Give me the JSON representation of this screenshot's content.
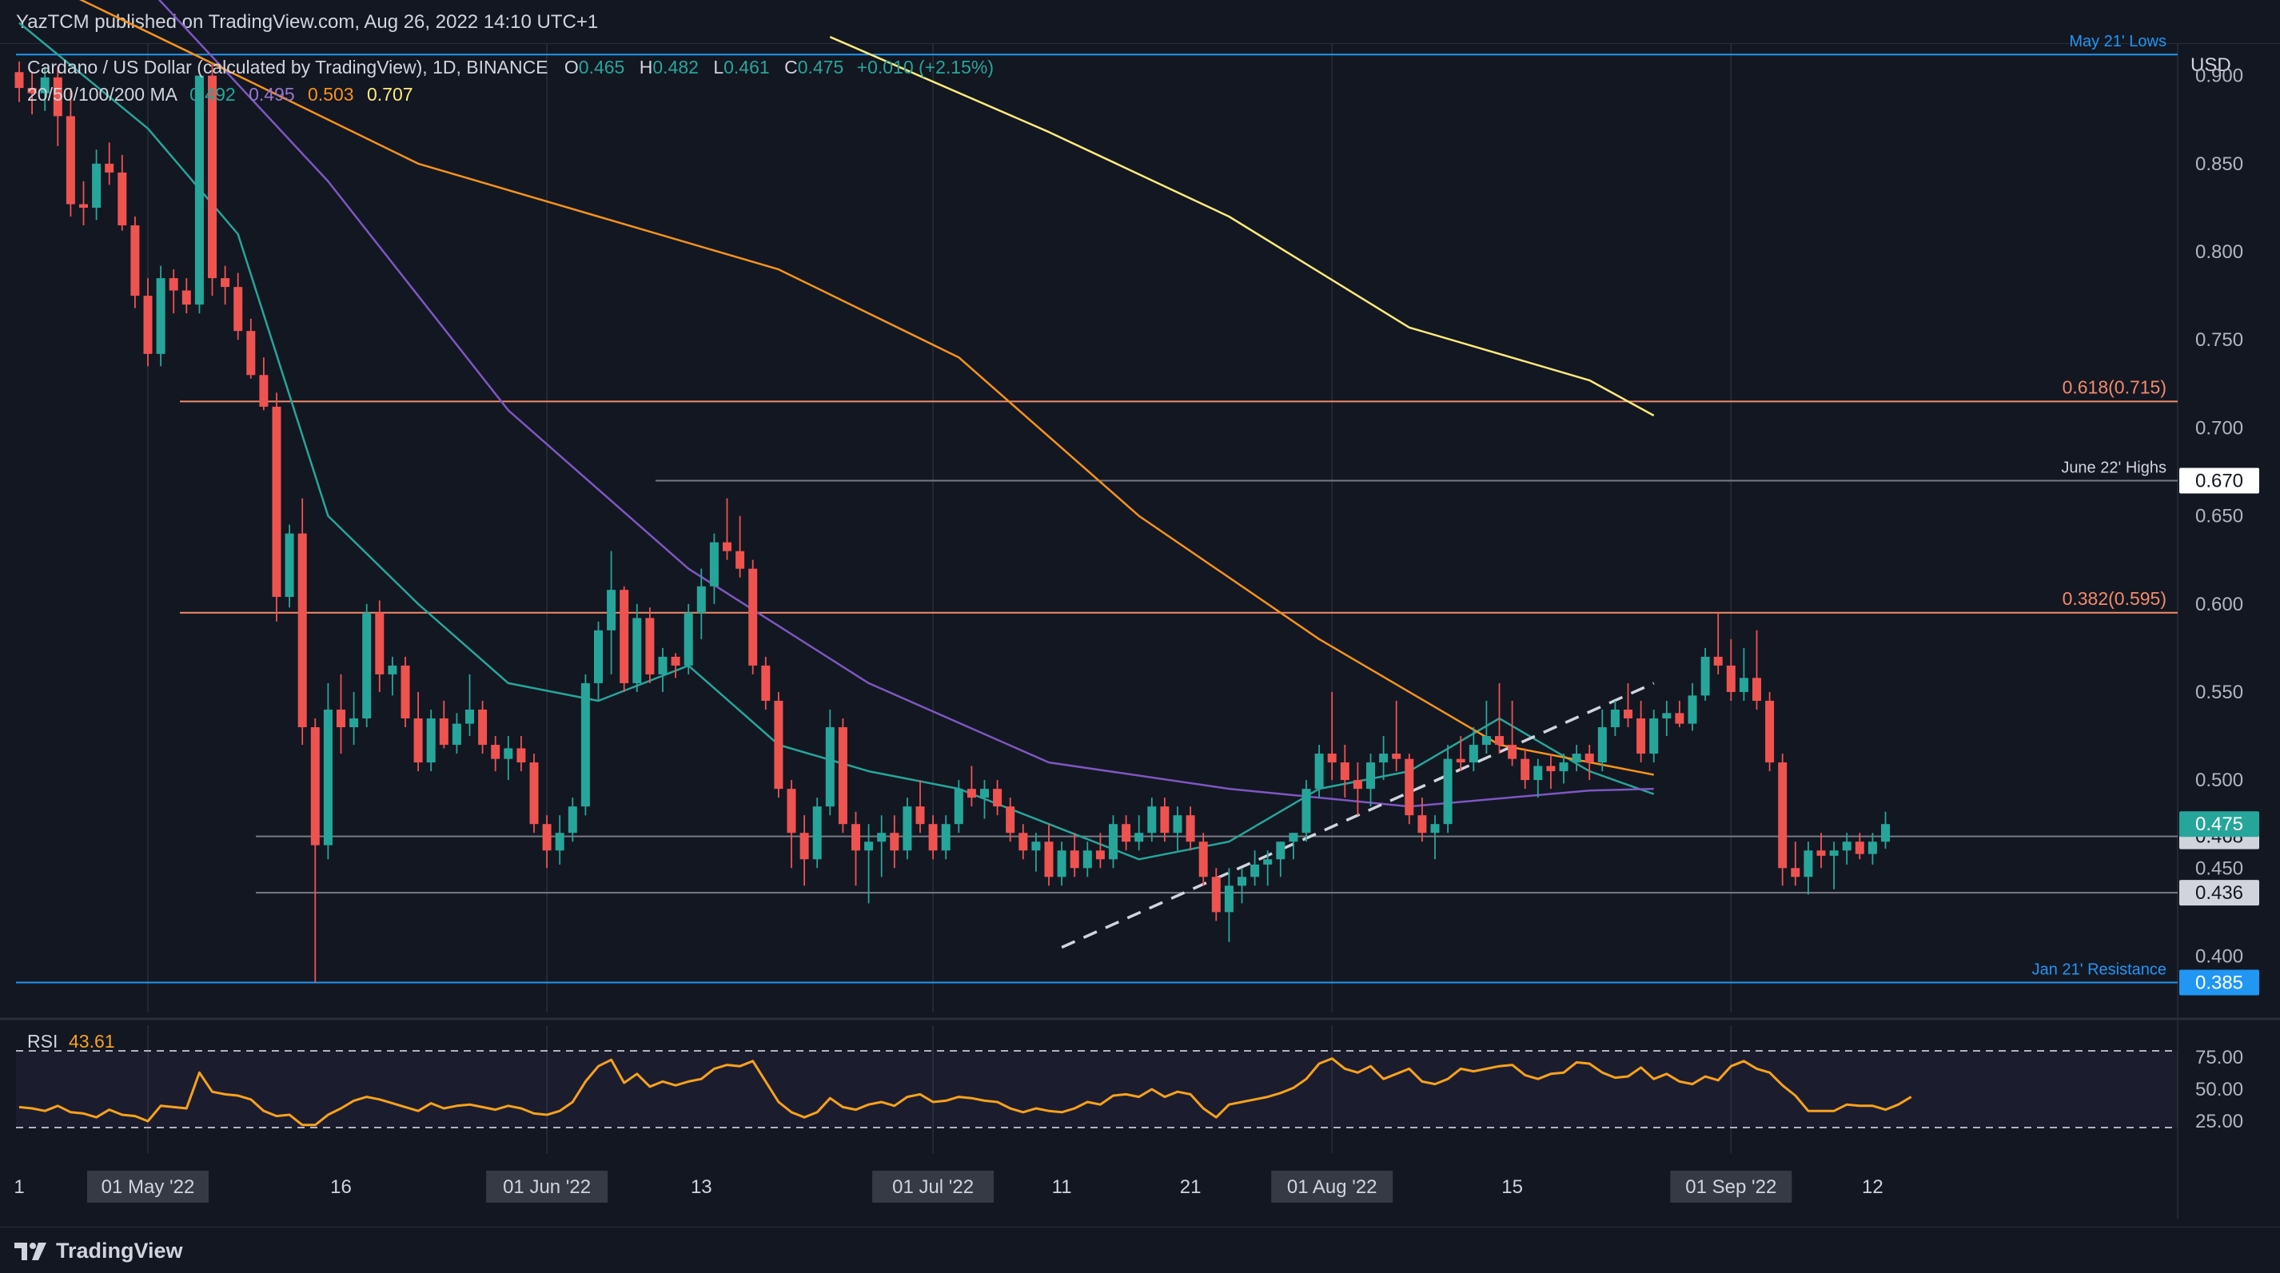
{
  "header": {
    "published": "YazTCM published on TradingView.com, Aug 26, 2022 14:10 UTC+1"
  },
  "legend": {
    "symbol": "Cardano / US Dollar (calculated by TradingView), 1D, BINANCE",
    "o_label": "O",
    "o_value": "0.465",
    "h_label": "H",
    "h_value": "0.482",
    "l_label": "L",
    "l_value": "0.461",
    "c_label": "C",
    "c_value": "0.475",
    "change": "+0.010 (+2.15%)",
    "ma_label": "20/50/100/200 MA",
    "ma_values": [
      "0.492",
      "0.495",
      "0.503",
      "0.707"
    ]
  },
  "footer": {
    "brand": "TradingView"
  },
  "colors": {
    "background": "#131722",
    "up": "#26a69a",
    "down": "#ef5350",
    "ma20": "#26a69a",
    "ma50": "#7e57c2",
    "ma100": "#f7931a",
    "ma200": "#ffeb7a",
    "rsi": "#f7a21b",
    "blue_level": "#2196f3",
    "fib_level": "#f28b6b"
  },
  "chart_data": {
    "type": "candlestick",
    "currency_label": "USD",
    "ylim": [
      0.368,
      0.918
    ],
    "y_ticks": [
      "0.900",
      "0.850",
      "0.800",
      "0.750",
      "0.700",
      "0.650",
      "0.600",
      "0.550",
      "0.500",
      "0.450",
      "0.400"
    ],
    "x_ticks": [
      {
        "label": "1",
        "date": "2022-04-21",
        "boxed": false
      },
      {
        "label": "01 May '22",
        "date": "2022-05-01",
        "boxed": true
      },
      {
        "label": "16",
        "date": "2022-05-16",
        "boxed": false
      },
      {
        "label": "01 Jun '22",
        "date": "2022-06-01",
        "boxed": true
      },
      {
        "label": "13",
        "date": "2022-06-13",
        "boxed": false
      },
      {
        "label": "01 Jul '22",
        "date": "2022-07-01",
        "boxed": true
      },
      {
        "label": "11",
        "date": "2022-07-11",
        "boxed": false
      },
      {
        "label": "21",
        "date": "2022-07-21",
        "boxed": false
      },
      {
        "label": "01 Aug '22",
        "date": "2022-08-01",
        "boxed": true
      },
      {
        "label": "15",
        "date": "2022-08-15",
        "boxed": false
      },
      {
        "label": "01 Sep '22",
        "date": "2022-09-01",
        "boxed": true
      },
      {
        "label": "12",
        "date": "2022-09-12",
        "boxed": false
      }
    ],
    "vertical_grid_dates": [
      "2022-05-01",
      "2022-06-01",
      "2022-07-01",
      "2022-08-01",
      "2022-09-01"
    ],
    "candles_start": "2022-04-21",
    "candles": [
      [
        0.902,
        0.908,
        0.885,
        0.893
      ],
      [
        0.893,
        0.902,
        0.878,
        0.89
      ],
      [
        0.89,
        0.905,
        0.88,
        0.899
      ],
      [
        0.899,
        0.905,
        0.86,
        0.877
      ],
      [
        0.877,
        0.893,
        0.82,
        0.827
      ],
      [
        0.827,
        0.84,
        0.815,
        0.825
      ],
      [
        0.825,
        0.858,
        0.818,
        0.85
      ],
      [
        0.85,
        0.862,
        0.838,
        0.845
      ],
      [
        0.845,
        0.855,
        0.812,
        0.815
      ],
      [
        0.815,
        0.82,
        0.768,
        0.775
      ],
      [
        0.775,
        0.785,
        0.735,
        0.742
      ],
      [
        0.742,
        0.792,
        0.735,
        0.785
      ],
      [
        0.785,
        0.79,
        0.765,
        0.778
      ],
      [
        0.778,
        0.785,
        0.765,
        0.77
      ],
      [
        0.77,
        0.9,
        0.765,
        0.9
      ],
      [
        0.9,
        0.907,
        0.775,
        0.785
      ],
      [
        0.785,
        0.792,
        0.77,
        0.78
      ],
      [
        0.78,
        0.788,
        0.75,
        0.755
      ],
      [
        0.755,
        0.762,
        0.728,
        0.73
      ],
      [
        0.73,
        0.74,
        0.71,
        0.712
      ],
      [
        0.712,
        0.72,
        0.59,
        0.604
      ],
      [
        0.604,
        0.645,
        0.598,
        0.64
      ],
      [
        0.64,
        0.66,
        0.52,
        0.53
      ],
      [
        0.53,
        0.535,
        0.385,
        0.463
      ],
      [
        0.463,
        0.555,
        0.455,
        0.54
      ],
      [
        0.54,
        0.56,
        0.515,
        0.53
      ],
      [
        0.53,
        0.55,
        0.52,
        0.535
      ],
      [
        0.535,
        0.6,
        0.53,
        0.595
      ],
      [
        0.595,
        0.602,
        0.55,
        0.56
      ],
      [
        0.56,
        0.57,
        0.548,
        0.565
      ],
      [
        0.565,
        0.57,
        0.53,
        0.535
      ],
      [
        0.535,
        0.55,
        0.505,
        0.51
      ],
      [
        0.51,
        0.54,
        0.505,
        0.535
      ],
      [
        0.535,
        0.545,
        0.518,
        0.52
      ],
      [
        0.52,
        0.538,
        0.515,
        0.532
      ],
      [
        0.532,
        0.56,
        0.525,
        0.54
      ],
      [
        0.54,
        0.545,
        0.515,
        0.52
      ],
      [
        0.52,
        0.525,
        0.505,
        0.512
      ],
      [
        0.512,
        0.525,
        0.5,
        0.518
      ],
      [
        0.518,
        0.525,
        0.505,
        0.51
      ],
      [
        0.51,
        0.515,
        0.47,
        0.475
      ],
      [
        0.475,
        0.48,
        0.45,
        0.46
      ],
      [
        0.46,
        0.48,
        0.452,
        0.47
      ],
      [
        0.47,
        0.49,
        0.465,
        0.485
      ],
      [
        0.485,
        0.56,
        0.48,
        0.555
      ],
      [
        0.555,
        0.59,
        0.545,
        0.585
      ],
      [
        0.585,
        0.63,
        0.56,
        0.608
      ],
      [
        0.608,
        0.61,
        0.55,
        0.555
      ],
      [
        0.555,
        0.6,
        0.55,
        0.592
      ],
      [
        0.592,
        0.598,
        0.555,
        0.56
      ],
      [
        0.56,
        0.575,
        0.55,
        0.57
      ],
      [
        0.57,
        0.572,
        0.558,
        0.565
      ],
      [
        0.565,
        0.6,
        0.56,
        0.595
      ],
      [
        0.595,
        0.62,
        0.58,
        0.61
      ],
      [
        0.61,
        0.64,
        0.6,
        0.635
      ],
      [
        0.635,
        0.66,
        0.625,
        0.63
      ],
      [
        0.63,
        0.65,
        0.615,
        0.62
      ],
      [
        0.62,
        0.625,
        0.56,
        0.565
      ],
      [
        0.565,
        0.57,
        0.54,
        0.545
      ],
      [
        0.545,
        0.55,
        0.49,
        0.495
      ],
      [
        0.495,
        0.5,
        0.45,
        0.47
      ],
      [
        0.47,
        0.48,
        0.44,
        0.455
      ],
      [
        0.455,
        0.49,
        0.45,
        0.485
      ],
      [
        0.485,
        0.54,
        0.48,
        0.53
      ],
      [
        0.53,
        0.535,
        0.47,
        0.475
      ],
      [
        0.475,
        0.482,
        0.44,
        0.46
      ],
      [
        0.46,
        0.475,
        0.43,
        0.465
      ],
      [
        0.465,
        0.48,
        0.445,
        0.47
      ],
      [
        0.47,
        0.48,
        0.45,
        0.46
      ],
      [
        0.46,
        0.49,
        0.455,
        0.485
      ],
      [
        0.485,
        0.5,
        0.47,
        0.475
      ],
      [
        0.475,
        0.48,
        0.455,
        0.46
      ],
      [
        0.46,
        0.48,
        0.455,
        0.475
      ],
      [
        0.475,
        0.5,
        0.47,
        0.495
      ],
      [
        0.495,
        0.508,
        0.485,
        0.49
      ],
      [
        0.49,
        0.5,
        0.478,
        0.495
      ],
      [
        0.495,
        0.5,
        0.48,
        0.485
      ],
      [
        0.485,
        0.49,
        0.465,
        0.47
      ],
      [
        0.47,
        0.475,
        0.455,
        0.46
      ],
      [
        0.46,
        0.47,
        0.448,
        0.465
      ],
      [
        0.465,
        0.475,
        0.44,
        0.445
      ],
      [
        0.445,
        0.465,
        0.44,
        0.46
      ],
      [
        0.46,
        0.47,
        0.445,
        0.45
      ],
      [
        0.45,
        0.465,
        0.445,
        0.46
      ],
      [
        0.46,
        0.47,
        0.45,
        0.455
      ],
      [
        0.455,
        0.48,
        0.45,
        0.475
      ],
      [
        0.475,
        0.48,
        0.46,
        0.465
      ],
      [
        0.465,
        0.48,
        0.46,
        0.47
      ],
      [
        0.47,
        0.49,
        0.465,
        0.485
      ],
      [
        0.485,
        0.49,
        0.465,
        0.47
      ],
      [
        0.47,
        0.485,
        0.46,
        0.48
      ],
      [
        0.48,
        0.485,
        0.46,
        0.465
      ],
      [
        0.465,
        0.47,
        0.44,
        0.445
      ],
      [
        0.445,
        0.45,
        0.42,
        0.425
      ],
      [
        0.425,
        0.45,
        0.408,
        0.44
      ],
      [
        0.44,
        0.45,
        0.43,
        0.445
      ],
      [
        0.445,
        0.46,
        0.44,
        0.452
      ],
      [
        0.452,
        0.46,
        0.44,
        0.455
      ],
      [
        0.455,
        0.465,
        0.445,
        0.465
      ],
      [
        0.465,
        0.47,
        0.455,
        0.47
      ],
      [
        0.47,
        0.5,
        0.465,
        0.495
      ],
      [
        0.495,
        0.52,
        0.49,
        0.515
      ],
      [
        0.515,
        0.55,
        0.5,
        0.51
      ],
      [
        0.51,
        0.52,
        0.49,
        0.5
      ],
      [
        0.5,
        0.51,
        0.48,
        0.495
      ],
      [
        0.495,
        0.515,
        0.485,
        0.51
      ],
      [
        0.51,
        0.525,
        0.5,
        0.515
      ],
      [
        0.515,
        0.545,
        0.505,
        0.512
      ],
      [
        0.512,
        0.515,
        0.475,
        0.48
      ],
      [
        0.48,
        0.49,
        0.465,
        0.47
      ],
      [
        0.47,
        0.48,
        0.455,
        0.475
      ],
      [
        0.475,
        0.52,
        0.47,
        0.512
      ],
      [
        0.512,
        0.525,
        0.505,
        0.51
      ],
      [
        0.51,
        0.53,
        0.505,
        0.52
      ],
      [
        0.52,
        0.545,
        0.515,
        0.525
      ],
      [
        0.525,
        0.555,
        0.515,
        0.52
      ],
      [
        0.52,
        0.545,
        0.508,
        0.512
      ],
      [
        0.512,
        0.518,
        0.495,
        0.5
      ],
      [
        0.5,
        0.512,
        0.49,
        0.508
      ],
      [
        0.508,
        0.515,
        0.495,
        0.505
      ],
      [
        0.505,
        0.515,
        0.498,
        0.51
      ],
      [
        0.51,
        0.52,
        0.505,
        0.515
      ],
      [
        0.515,
        0.52,
        0.5,
        0.51
      ],
      [
        0.51,
        0.54,
        0.505,
        0.53
      ],
      [
        0.53,
        0.545,
        0.525,
        0.54
      ],
      [
        0.54,
        0.555,
        0.53,
        0.535
      ],
      [
        0.535,
        0.545,
        0.51,
        0.515
      ],
      [
        0.515,
        0.54,
        0.51,
        0.535
      ],
      [
        0.535,
        0.545,
        0.525,
        0.538
      ],
      [
        0.538,
        0.545,
        0.53,
        0.532
      ],
      [
        0.532,
        0.555,
        0.528,
        0.548
      ],
      [
        0.548,
        0.575,
        0.545,
        0.57
      ],
      [
        0.57,
        0.595,
        0.56,
        0.565
      ],
      [
        0.565,
        0.58,
        0.545,
        0.55
      ],
      [
        0.55,
        0.575,
        0.545,
        0.558
      ],
      [
        0.558,
        0.585,
        0.54,
        0.545
      ],
      [
        0.545,
        0.55,
        0.505,
        0.51
      ],
      [
        0.51,
        0.515,
        0.44,
        0.45
      ],
      [
        0.45,
        0.465,
        0.44,
        0.445
      ],
      [
        0.445,
        0.465,
        0.435,
        0.46
      ],
      [
        0.46,
        0.47,
        0.45,
        0.457
      ],
      [
        0.457,
        0.465,
        0.438,
        0.46
      ],
      [
        0.46,
        0.47,
        0.452,
        0.465
      ],
      [
        0.465,
        0.47,
        0.455,
        0.458
      ],
      [
        0.458,
        0.47,
        0.452,
        0.465
      ],
      [
        0.465,
        0.482,
        0.461,
        0.475
      ]
    ],
    "moving_averages": [
      {
        "name": "MA 20",
        "value": "0.492",
        "points": [
          [
            "2022-04-21",
            0.93
          ],
          [
            "2022-05-01",
            0.87
          ],
          [
            "2022-05-08",
            0.81
          ],
          [
            "2022-05-15",
            0.65
          ],
          [
            "2022-05-22",
            0.6
          ],
          [
            "2022-05-29",
            0.555
          ],
          [
            "2022-06-05",
            0.545
          ],
          [
            "2022-06-12",
            0.565
          ],
          [
            "2022-06-19",
            0.52
          ],
          [
            "2022-06-26",
            0.505
          ],
          [
            "2022-07-03",
            0.495
          ],
          [
            "2022-07-10",
            0.475
          ],
          [
            "2022-07-17",
            0.455
          ],
          [
            "2022-07-24",
            0.465
          ],
          [
            "2022-07-31",
            0.495
          ],
          [
            "2022-08-07",
            0.505
          ],
          [
            "2022-08-14",
            0.535
          ],
          [
            "2022-08-21",
            0.505
          ],
          [
            "2022-08-26",
            0.492
          ]
        ]
      },
      {
        "name": "MA 50",
        "value": "0.495",
        "points": [
          [
            "2022-04-21",
            0.99
          ],
          [
            "2022-05-01",
            0.95
          ],
          [
            "2022-05-15",
            0.84
          ],
          [
            "2022-05-29",
            0.71
          ],
          [
            "2022-06-12",
            0.62
          ],
          [
            "2022-06-26",
            0.555
          ],
          [
            "2022-07-10",
            0.51
          ],
          [
            "2022-07-24",
            0.495
          ],
          [
            "2022-08-07",
            0.485
          ],
          [
            "2022-08-21",
            0.494
          ],
          [
            "2022-08-26",
            0.495
          ]
        ]
      },
      {
        "name": "MA 100",
        "value": "0.503",
        "points": [
          [
            "2022-04-21",
            0.96
          ],
          [
            "2022-05-08",
            0.9
          ],
          [
            "2022-05-22",
            0.85
          ],
          [
            "2022-06-05",
            0.82
          ],
          [
            "2022-06-19",
            0.79
          ],
          [
            "2022-07-03",
            0.74
          ],
          [
            "2022-07-17",
            0.65
          ],
          [
            "2022-07-31",
            0.58
          ],
          [
            "2022-08-14",
            0.52
          ],
          [
            "2022-08-26",
            0.503
          ]
        ]
      },
      {
        "name": "MA 200",
        "value": "0.707",
        "points": [
          [
            "2022-06-23",
            0.922
          ],
          [
            "2022-07-10",
            0.868
          ],
          [
            "2022-07-24",
            0.82
          ],
          [
            "2022-08-07",
            0.757
          ],
          [
            "2022-08-21",
            0.727
          ],
          [
            "2022-08-26",
            0.707
          ]
        ]
      }
    ],
    "levels": [
      {
        "label": "May 21' Lows",
        "value": 0.912,
        "kind": "blue",
        "price_tag": ""
      },
      {
        "label": "0.618(0.715)",
        "value": 0.715,
        "kind": "fib",
        "price_tag": ""
      },
      {
        "label": "June 22' Highs",
        "value": 0.67,
        "kind": "grey",
        "price_tag": "0.670"
      },
      {
        "label": "0.382(0.595)",
        "value": 0.595,
        "kind": "fib",
        "price_tag": ""
      },
      {
        "label": "",
        "value": 0.468,
        "kind": "grey",
        "price_tag": "0.468"
      },
      {
        "label": "",
        "value": 0.436,
        "kind": "grey",
        "price_tag": "0.436"
      },
      {
        "label": "Jan 21' Resistance",
        "value": 0.385,
        "kind": "blue",
        "price_tag": "0.385"
      }
    ],
    "last_price_tag": "0.475",
    "trendline": {
      "start": [
        "2022-07-11",
        0.405
      ],
      "end": [
        "2022-08-26",
        0.555
      ]
    },
    "rsi": {
      "label": "RSI",
      "value": "43.61",
      "ylim": [
        0,
        100
      ],
      "ticks": [
        "75.00",
        "50.00",
        "25.00"
      ],
      "bands": [
        80,
        20
      ],
      "values": [
        36,
        35,
        33,
        37,
        32,
        31,
        28,
        34,
        30,
        29,
        25,
        37,
        36,
        35,
        63,
        48,
        46,
        45,
        42,
        33,
        29,
        30,
        22,
        22,
        30,
        35,
        41,
        44,
        42,
        39,
        36,
        33,
        39,
        35,
        37,
        38,
        36,
        34,
        37,
        35,
        31,
        30,
        33,
        40,
        56,
        68,
        73,
        55,
        62,
        52,
        56,
        53,
        56,
        58,
        66,
        69,
        68,
        72,
        56,
        40,
        32,
        28,
        32,
        43,
        36,
        34,
        38,
        40,
        37,
        44,
        46,
        40,
        41,
        44,
        43,
        41,
        40,
        35,
        32,
        35,
        33,
        32,
        35,
        40,
        38,
        45,
        46,
        44,
        50,
        44,
        48,
        46,
        35,
        28,
        38,
        40,
        42,
        44,
        47,
        51,
        58,
        70,
        74,
        66,
        63,
        68,
        58,
        62,
        66,
        56,
        54,
        58,
        66,
        64,
        66,
        68,
        69,
        61,
        58,
        62,
        63,
        71,
        70,
        63,
        59,
        60,
        67,
        58,
        62,
        56,
        54,
        60,
        57,
        68,
        72,
        66,
        63,
        53,
        45,
        33,
        33,
        33,
        38,
        37,
        37,
        34,
        38,
        44
      ]
    }
  }
}
